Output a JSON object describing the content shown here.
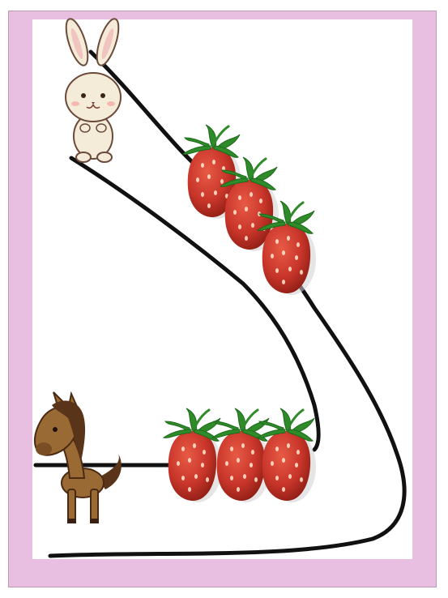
{
  "scene": {
    "frame_color": "#e8bfe0",
    "sheet_color": "#ffffff",
    "path_color": "#111111",
    "characters": [
      {
        "name": "rabbit",
        "icon": "rabbit-icon"
      },
      {
        "name": "horse",
        "icon": "horse-icon"
      }
    ],
    "strawberry_groups": [
      {
        "name": "upper-strawberries",
        "count": 3
      },
      {
        "name": "lower-strawberries",
        "count": 3
      }
    ],
    "colors": {
      "strawberry_red": "#c8352a",
      "strawberry_dark": "#9e2216",
      "leaf_green": "#2f8a2a",
      "rabbit_fur": "#f4ecd8",
      "horse_fur": "#9a6a35",
      "horse_mane": "#5a3418"
    }
  }
}
